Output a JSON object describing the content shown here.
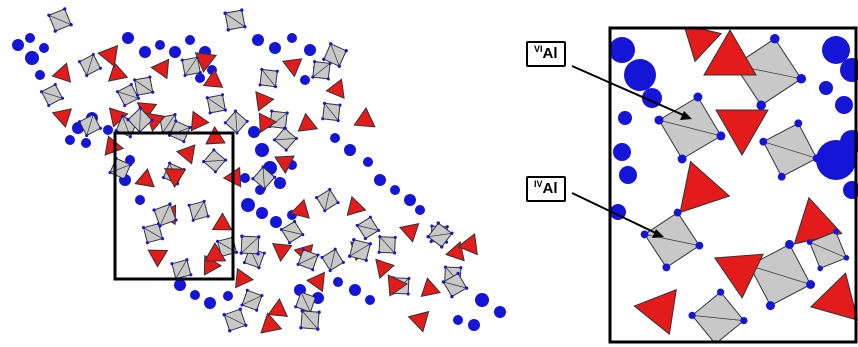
{
  "colors": {
    "octahedron_fill": "#c8c8c8",
    "tetrahedron_fill": "#e31b1b",
    "atom_fill": "#1515d8",
    "edge": "#333333",
    "frame": "#000000",
    "background": "#ffffff"
  },
  "labels": {
    "octahedral_al": {
      "sup": "VI",
      "text": "Al"
    },
    "tetrahedral_al": {
      "sup": "IV",
      "text": "Al"
    }
  }
}
